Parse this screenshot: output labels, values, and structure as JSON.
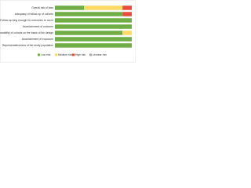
{
  "chart_data": {
    "type": "stacked-bar-horizontal",
    "categories": [
      "Overall risk of bias",
      "Adequacy of follow-up of cohorts",
      "Follow-up long enough for outcomes to occur",
      "Ascertainment of outcome",
      "Comparability of cohorts on the basis of the design",
      "Ascertainment of exposure",
      "Representativeness of the study population"
    ],
    "series": [
      {
        "name": "Low risk",
        "color": "#70ad47",
        "values": [
          38,
          88,
          100,
          100,
          88,
          100,
          100
        ]
      },
      {
        "name": "Medium risk",
        "color": "#ffd966",
        "values": [
          50,
          0,
          0,
          0,
          12,
          0,
          0
        ]
      },
      {
        "name": "High risk",
        "color": "#e74c3c",
        "values": [
          12,
          12,
          0,
          0,
          0,
          0,
          0
        ]
      },
      {
        "name": "Unclear risk",
        "color": "#a6a6a6",
        "values": [
          0,
          0,
          0,
          0,
          0,
          0,
          0
        ]
      }
    ],
    "xlim": [
      0,
      100
    ]
  }
}
